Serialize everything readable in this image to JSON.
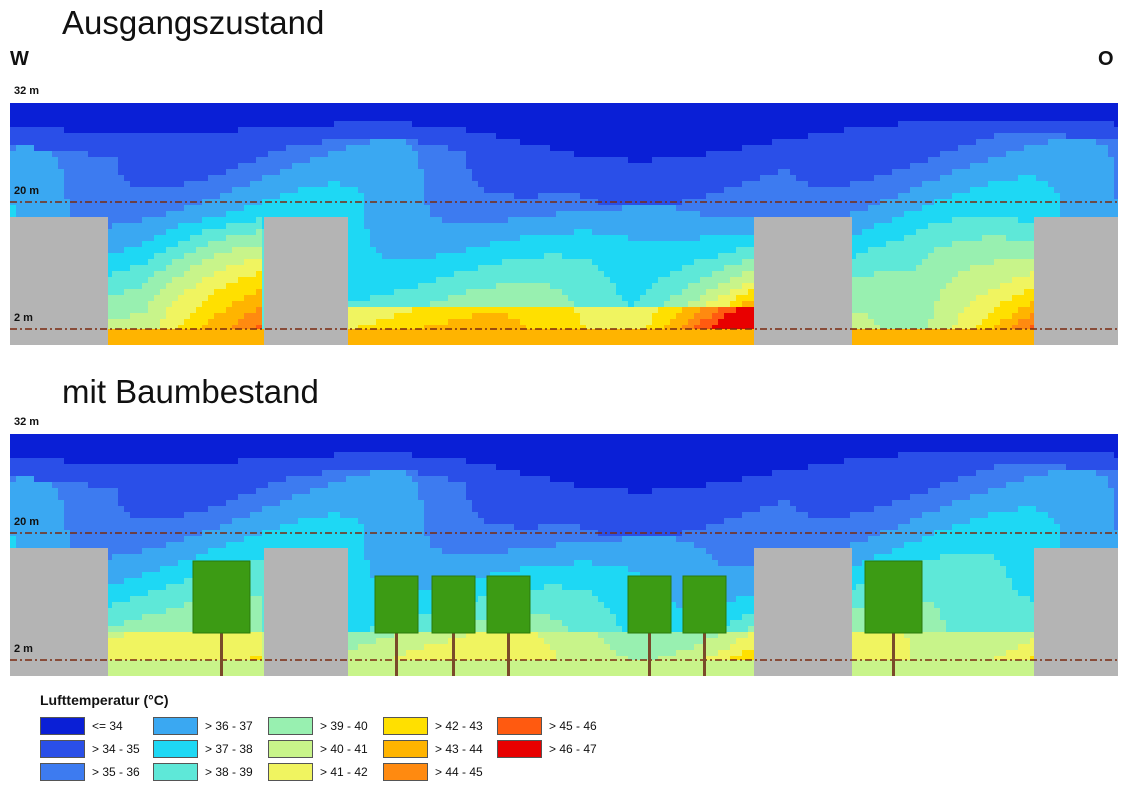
{
  "labels": {
    "title_top": "Ausgangszustand",
    "title_bottom": "mit Baumbestand",
    "west": "W",
    "east": "O",
    "h32": "32 m",
    "h20": "20 m",
    "h2": "2 m"
  },
  "legend": {
    "title": "Lufttemperatur (°C)",
    "items": [
      {
        "label": "<= 34",
        "color": "#0a1fd6"
      },
      {
        "label": "> 34 - 35",
        "color": "#2a4fe8"
      },
      {
        "label": "> 35 - 36",
        "color": "#3d7bf0"
      },
      {
        "label": "> 36 - 37",
        "color": "#3aa8f2"
      },
      {
        "label": "> 37 - 38",
        "color": "#1ed8f4"
      },
      {
        "label": "> 38 - 39",
        "color": "#5ee8d8"
      },
      {
        "label": "> 39 - 40",
        "color": "#98f0b0"
      },
      {
        "label": "> 40 - 41",
        "color": "#c8f48a"
      },
      {
        "label": "> 41 - 42",
        "color": "#f0f460"
      },
      {
        "label": "> 42 - 43",
        "color": "#ffe000"
      },
      {
        "label": "> 43 - 44",
        "color": "#ffb400"
      },
      {
        "label": "> 44 - 45",
        "color": "#ff8a10"
      },
      {
        "label": "> 45 - 46",
        "color": "#ff5a10"
      },
      {
        "label": "> 46 - 47",
        "color": "#e80000"
      }
    ]
  },
  "colors": {
    "building": "#b4b4b4",
    "tree_crown": "#3c9b14",
    "tree_trunk": "#7a4a2a",
    "height_line": "#7a2a10"
  },
  "chart_data": [
    {
      "type": "heatmap",
      "title": "Ausgangszustand",
      "orientation": [
        "W",
        "O"
      ],
      "height_markers_m": [
        2,
        20,
        32
      ],
      "buildings": 4,
      "trees": 0
    },
    {
      "type": "heatmap",
      "title": "mit Baumbestand",
      "height_markers_m": [
        2,
        20,
        32
      ],
      "buildings": 4,
      "trees": 7
    }
  ]
}
